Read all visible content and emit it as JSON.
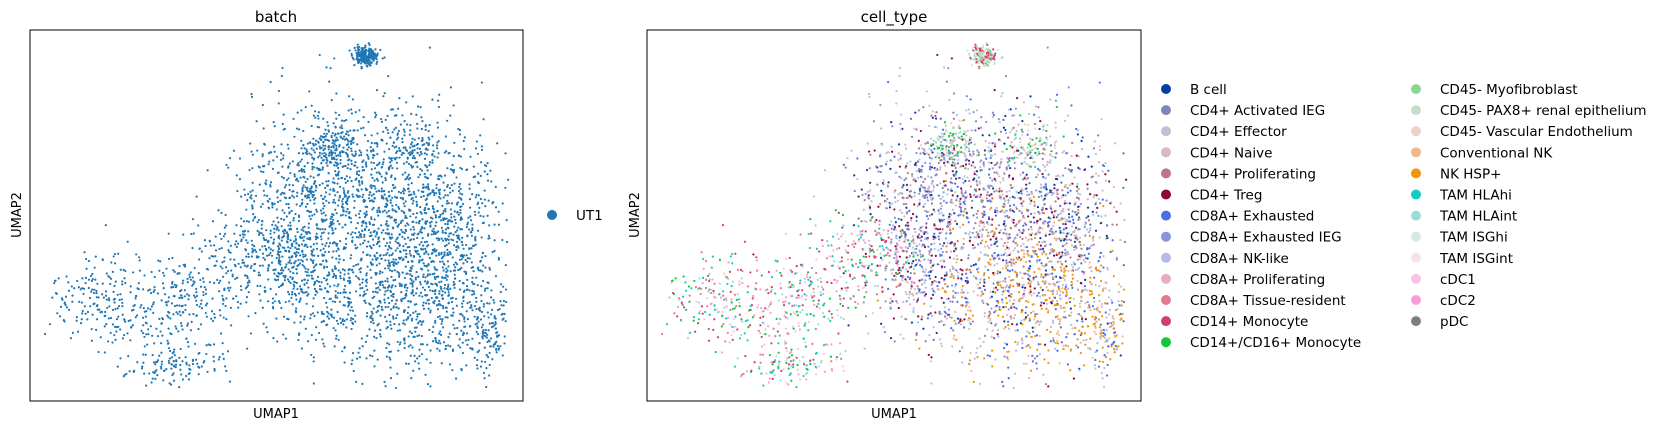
{
  "chart_data": [
    {
      "type": "scatter",
      "title": "batch",
      "xlabel": "UMAP1",
      "ylabel": "UMAP2",
      "grid": false,
      "legend_placement": "right",
      "series": [
        {
          "name": "UT1",
          "color": "#1f77b4"
        }
      ]
    },
    {
      "type": "scatter",
      "title": "cell_type",
      "xlabel": "UMAP1",
      "ylabel": "UMAP2",
      "grid": false,
      "legend_placement": "right",
      "series": [
        {
          "name": "B cell",
          "color": "#023fa5"
        },
        {
          "name": "CD4+ Activated IEG",
          "color": "#7d87b9"
        },
        {
          "name": "CD4+ Effector",
          "color": "#bec1d4"
        },
        {
          "name": "CD4+ Naive",
          "color": "#d6bcc0"
        },
        {
          "name": "CD4+ Proliferating",
          "color": "#bb7784"
        },
        {
          "name": "CD4+ Treg",
          "color": "#8e063b"
        },
        {
          "name": "CD8A+ Exhausted",
          "color": "#4a6fe3"
        },
        {
          "name": "CD8A+ Exhausted IEG",
          "color": "#8595e1"
        },
        {
          "name": "CD8A+ NK-like",
          "color": "#b5bbe3"
        },
        {
          "name": "CD8A+ Proliferating",
          "color": "#e6afb9"
        },
        {
          "name": "CD8A+ Tissue-resident",
          "color": "#e07b91"
        },
        {
          "name": "CD14+ Monocyte",
          "color": "#d33f6a"
        },
        {
          "name": "CD14+/CD16+ Monocyte",
          "color": "#11c638"
        },
        {
          "name": "CD45- Myofibroblast",
          "color": "#8dd593"
        },
        {
          "name": "CD45- PAX8+ renal epithelium",
          "color": "#c6dec7"
        },
        {
          "name": "CD45- Vascular Endothelium",
          "color": "#ead3c6"
        },
        {
          "name": "Conventional NK",
          "color": "#f0b98d"
        },
        {
          "name": "NK HSP+",
          "color": "#ef9708"
        },
        {
          "name": "TAM HLAhi",
          "color": "#0fcfc0"
        },
        {
          "name": "TAM HLAint",
          "color": "#9cded6"
        },
        {
          "name": "TAM ISGhi",
          "color": "#d5eae7"
        },
        {
          "name": "TAM ISGint",
          "color": "#f3e1eb"
        },
        {
          "name": "cDC1",
          "color": "#f6c4e1"
        },
        {
          "name": "cDC2",
          "color": "#f79cd4"
        },
        {
          "name": "pDC",
          "color": "#7f7f7f"
        }
      ]
    }
  ]
}
